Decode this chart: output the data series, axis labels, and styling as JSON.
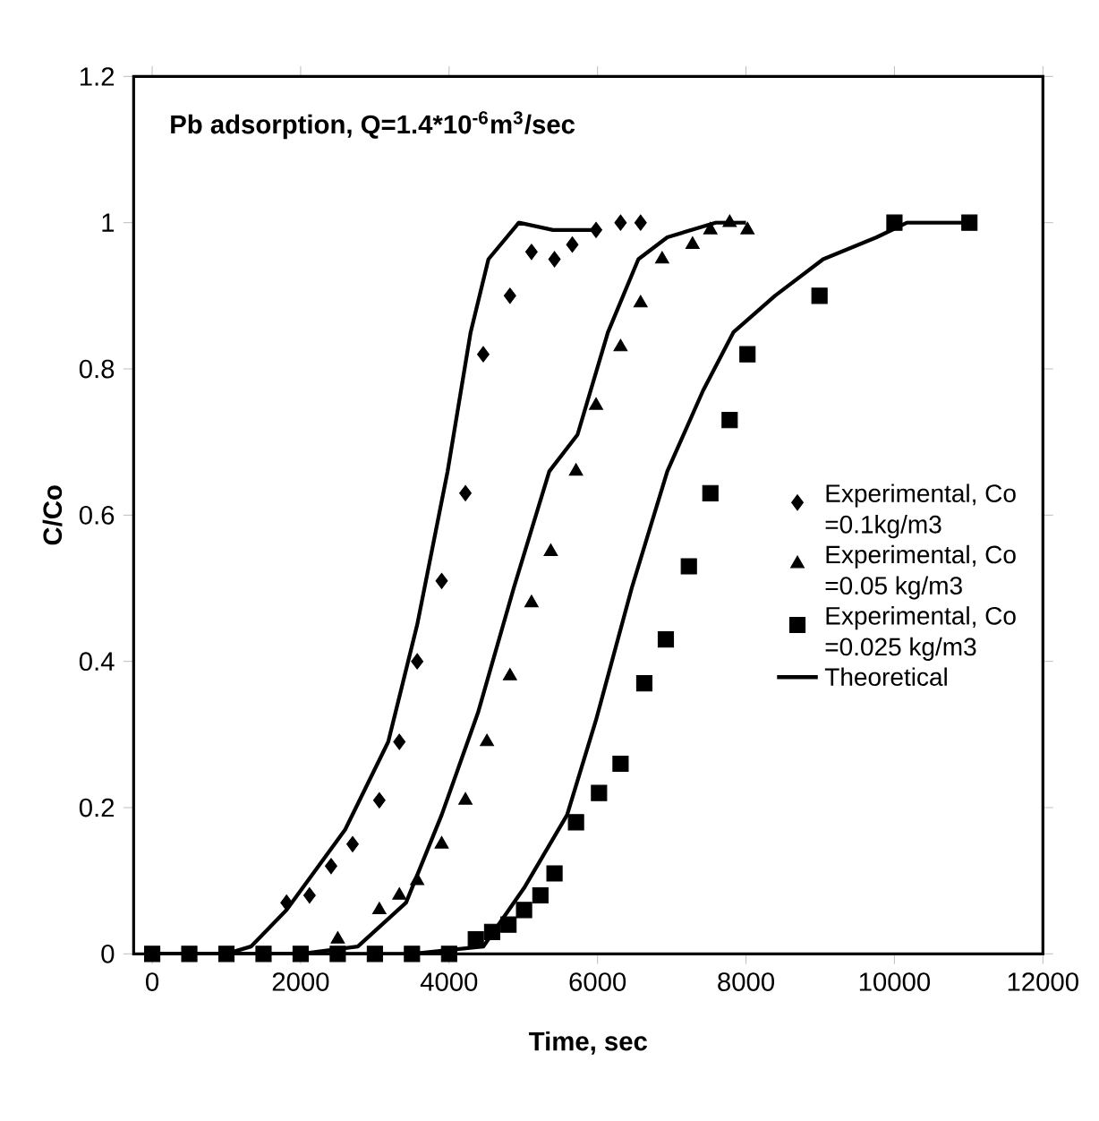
{
  "chart_data": {
    "type": "scatter",
    "title": "Pb adsorption, Q=1.4*10$^{-6}$m$^{3}$/sec",
    "xlabel": "Time, sec",
    "ylabel": "C/Co",
    "xlim": [
      -250,
      12000
    ],
    "ylim": [
      0,
      1.2
    ],
    "xticks": [
      0,
      2000,
      4000,
      6000,
      8000,
      10000,
      12000
    ],
    "yticks": [
      0,
      0.2,
      0.4,
      0.6,
      0.8,
      1,
      1.2
    ],
    "legend": "right",
    "grid": false,
    "series": [
      {
        "name": "Experimental, Co =0.1kg/m3",
        "marker": "diamond",
        "color": "#000000",
        "x": [
          1810,
          2120,
          2410,
          2700,
          3060,
          3330,
          3570,
          3900,
          4220,
          4460,
          4820,
          5110,
          5420,
          5660,
          5980,
          6310,
          6580
        ],
        "values": [
          0.07,
          0.08,
          0.12,
          0.15,
          0.21,
          0.29,
          0.4,
          0.51,
          0.63,
          0.82,
          0.9,
          0.96,
          0.95,
          0.97,
          0.99,
          1.0,
          1.0
        ]
      },
      {
        "name": "Experimental, Co =0.05 kg/m3",
        "marker": "triangle",
        "color": "#000000",
        "x": [
          2500,
          3060,
          3330,
          3570,
          3900,
          4220,
          4510,
          4820,
          5110,
          5370,
          5710,
          5980,
          6310,
          6580,
          6870,
          7280,
          7520,
          7780,
          8020
        ],
        "values": [
          0.02,
          0.06,
          0.08,
          0.1,
          0.15,
          0.21,
          0.29,
          0.38,
          0.48,
          0.55,
          0.66,
          0.75,
          0.83,
          0.89,
          0.95,
          0.97,
          0.99,
          1.0,
          0.99
        ]
      },
      {
        "name": "Experimental, Co =0.025 kg/m3",
        "marker": "square",
        "color": "#000000",
        "x": [
          0,
          500,
          1000,
          1500,
          2000,
          2500,
          3000,
          3500,
          4000,
          4360,
          4580,
          4800,
          5010,
          5230,
          5420,
          5710,
          6020,
          6310,
          6630,
          6920,
          7230,
          7520,
          7780,
          8020,
          8990,
          10000,
          11010
        ],
        "values": [
          0,
          0,
          0,
          0,
          0,
          0,
          0,
          0,
          0,
          0.02,
          0.03,
          0.04,
          0.06,
          0.08,
          0.11,
          0.18,
          0.22,
          0.26,
          0.37,
          0.43,
          0.53,
          0.63,
          0.73,
          0.82,
          0.9,
          1.0,
          1.0
        ]
      },
      {
        "name": "Theoretical",
        "type": "line",
        "marker": "none",
        "color": "#000000",
        "x": [
          0,
          1000,
          1330,
          1810,
          2600,
          3180,
          3570,
          3980,
          4290,
          4530,
          4940,
          5400,
          6000
        ],
        "values": [
          0,
          0,
          0.01,
          0.06,
          0.17,
          0.29,
          0.45,
          0.66,
          0.85,
          0.95,
          1.0,
          0.99,
          0.99
        ]
      },
      {
        "type": "line",
        "marker": "none",
        "color": "#000000",
        "x": [
          0,
          2000,
          2770,
          3420,
          3900,
          4390,
          4870,
          5350,
          5730,
          6140,
          6550,
          6940,
          7590,
          8000
        ],
        "values": [
          0,
          0,
          0.01,
          0.07,
          0.19,
          0.33,
          0.5,
          0.66,
          0.71,
          0.85,
          0.95,
          0.98,
          1.0,
          1.0
        ]
      },
      {
        "type": "line",
        "marker": "none",
        "color": "#000000",
        "x": [
          0,
          3500,
          4460,
          5010,
          5590,
          5980,
          6460,
          6940,
          7420,
          7830,
          8390,
          9040,
          9760,
          10170,
          11010
        ],
        "values": [
          0,
          0,
          0.01,
          0.09,
          0.19,
          0.32,
          0.5,
          0.66,
          0.77,
          0.85,
          0.9,
          0.95,
          0.98,
          1.0,
          1.0
        ]
      }
    ]
  }
}
